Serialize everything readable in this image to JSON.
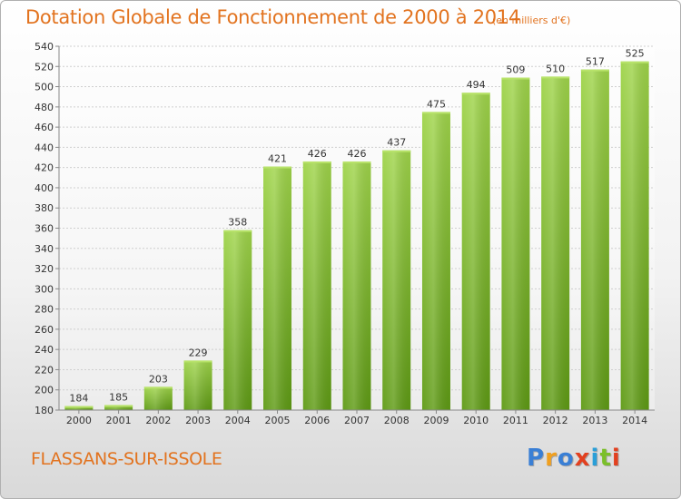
{
  "chart_data": {
    "type": "bar",
    "title": "Dotation Globale de Fonctionnement de 2000 à 2014",
    "unit_label": "(en milliers d'€)",
    "categories": [
      "2000",
      "2001",
      "2002",
      "2003",
      "2004",
      "2005",
      "2006",
      "2007",
      "2008",
      "2009",
      "2010",
      "2011",
      "2012",
      "2013",
      "2014"
    ],
    "values": [
      184,
      185,
      203,
      229,
      358,
      421,
      426,
      426,
      437,
      475,
      494,
      509,
      510,
      517,
      525
    ],
    "ylim": [
      180,
      540
    ],
    "yticks": [
      180,
      200,
      220,
      240,
      260,
      280,
      300,
      320,
      340,
      360,
      380,
      400,
      420,
      440,
      460,
      480,
      500,
      520,
      540
    ],
    "grid": true,
    "bar_color": "#7bbf2a"
  },
  "commune": "FLASSANS-SUR-ISSOLE",
  "logo": {
    "letters": [
      {
        "ch": "P",
        "color": "#3a7fd5"
      },
      {
        "ch": "r",
        "color": "#f0a020"
      },
      {
        "ch": "o",
        "color": "#3a7fd5"
      },
      {
        "ch": "x",
        "color": "#e2401f"
      },
      {
        "ch": "i",
        "color": "#2a9fd8"
      },
      {
        "ch": "t",
        "color": "#7bbf2a"
      },
      {
        "ch": "i",
        "color": "#e2401f"
      }
    ]
  }
}
